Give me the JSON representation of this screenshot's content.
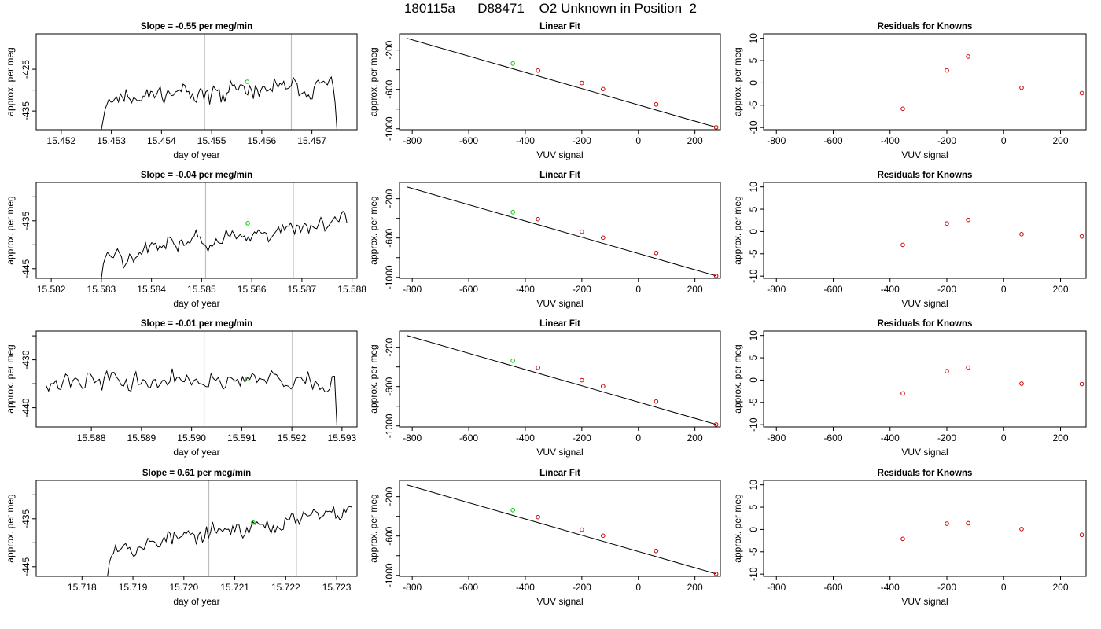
{
  "page": {
    "title": "180115a      D88471    O2 Unknown in Position  2"
  },
  "chart_data": [
    {
      "type": "line",
      "row": 1,
      "col": 1,
      "title": "Slope =  -0.55  per meg/min",
      "xlabel": "day of year",
      "ylabel": "approx. per meg",
      "xlim": [
        15.4515,
        15.4579
      ],
      "ylim": [
        -439.5,
        -416.5
      ],
      "xticks": [
        15.452,
        15.453,
        15.454,
        15.455,
        15.456,
        15.457
      ],
      "xtick_labels": [
        "15.452",
        "15.453",
        "15.454",
        "15.455",
        "15.456",
        "15.457"
      ],
      "yticks": [
        -435,
        -430,
        -425
      ],
      "ytick_labels": [
        "-435",
        "",
        "-425"
      ],
      "vlines": [
        15.45486,
        15.45659
      ],
      "marker": {
        "x": 15.45571,
        "y": -428.0
      },
      "trace": {
        "x_start": 15.4528,
        "x_end": 15.4575,
        "seed": 11,
        "base_start": -432.0,
        "base_end": -429.0,
        "noise": 2.6,
        "lead": [
          -439.5,
          -437.0,
          -434.5
        ],
        "tail": [
          -433.0,
          -439.5
        ]
      }
    },
    {
      "type": "line",
      "row": 1,
      "col": 2,
      "title": "Linear Fit",
      "xlabel": "VUV signal",
      "ylabel": "approx. per meg",
      "xlim": [
        -845,
        290
      ],
      "ylim": [
        -1010,
        -35
      ],
      "xticks": [
        -800,
        -600,
        -400,
        -200,
        0,
        200
      ],
      "xtick_labels": [
        "-800",
        "-600",
        "-400",
        "-200",
        "0",
        "200"
      ],
      "yticks": [
        -1000,
        -800,
        -600,
        -400,
        -200
      ],
      "ytick_labels": [
        "-1000",
        "",
        "-600",
        "",
        "-200"
      ],
      "fit_line": {
        "x": [
          -820,
          275
        ],
        "y": [
          -80,
          -985
        ]
      },
      "knowns": {
        "x": [
          -355,
          -200,
          -125,
          63,
          275
        ],
        "y": [
          -408,
          -535,
          -597,
          -752,
          -985
        ]
      },
      "unknown": {
        "x": [
          -444
        ],
        "y": [
          -337
        ]
      }
    },
    {
      "type": "scatter",
      "row": 1,
      "col": 3,
      "title": "Residuals for Knowns",
      "xlabel": "VUV signal",
      "ylabel": "approx. per meg",
      "xlim": [
        -845,
        290
      ],
      "ylim": [
        -10.5,
        11
      ],
      "xticks": [
        -800,
        -600,
        -400,
        -200,
        0,
        200
      ],
      "xtick_labels": [
        "-800",
        "-600",
        "-400",
        "-200",
        "0",
        "200"
      ],
      "yticks": [
        -10,
        -5,
        0,
        5,
        10
      ],
      "ytick_labels": [
        "-10",
        "-5",
        "0",
        "5",
        "10"
      ],
      "points": {
        "x": [
          -355,
          -200,
          -125,
          63,
          275
        ],
        "y": [
          -5.8,
          2.8,
          5.9,
          -1.1,
          -2.3
        ]
      }
    },
    {
      "type": "line",
      "row": 2,
      "col": 1,
      "title": "Slope =  -0.04  per meg/min",
      "xlabel": "day of year",
      "ylabel": "approx. per meg",
      "xlim": [
        15.5817,
        15.5881
      ],
      "ylim": [
        -447,
        -427
      ],
      "xticks": [
        15.582,
        15.583,
        15.584,
        15.585,
        15.586,
        15.587,
        15.588
      ],
      "xtick_labels": [
        "15.582",
        "15.583",
        "15.584",
        "15.585",
        "15.586",
        "15.587",
        "15.588"
      ],
      "yticks": [
        -445,
        -440,
        -435,
        -430
      ],
      "ytick_labels": [
        "-445",
        "",
        "-435",
        ""
      ],
      "vlines": [
        15.58508,
        15.58683
      ],
      "marker": {
        "x": 15.58592,
        "y": -435.5
      },
      "trace": {
        "x_start": 15.583,
        "x_end": 15.5879,
        "seed": 23,
        "base_start": -442.0,
        "base_end": -435.0,
        "noise": 2.2,
        "lead": [
          -447.0,
          -444.0
        ],
        "tail": [
          -435.5
        ]
      }
    },
    {
      "type": "line",
      "row": 2,
      "col": 2,
      "title": "Linear Fit",
      "xlabel": "VUV signal",
      "ylabel": "approx. per meg",
      "xlim": [
        -845,
        290
      ],
      "ylim": [
        -1010,
        -35
      ],
      "xticks": [
        -800,
        -600,
        -400,
        -200,
        0,
        200
      ],
      "xtick_labels": [
        "-800",
        "-600",
        "-400",
        "-200",
        "0",
        "200"
      ],
      "yticks": [
        -1000,
        -800,
        -600,
        -400,
        -200
      ],
      "ytick_labels": [
        "-1000",
        "",
        "-600",
        "",
        "-200"
      ],
      "fit_line": {
        "x": [
          -820,
          275
        ],
        "y": [
          -80,
          -985
        ]
      },
      "knowns": {
        "x": [
          -355,
          -200,
          -125,
          63,
          275
        ],
        "y": [
          -408,
          -535,
          -597,
          -752,
          -985
        ]
      },
      "unknown": {
        "x": [
          -444
        ],
        "y": [
          -337
        ]
      }
    },
    {
      "type": "scatter",
      "row": 2,
      "col": 3,
      "title": "Residuals for Knowns",
      "xlabel": "VUV signal",
      "ylabel": "approx. per meg",
      "xlim": [
        -845,
        290
      ],
      "ylim": [
        -10.5,
        11
      ],
      "xticks": [
        -800,
        -600,
        -400,
        -200,
        0,
        200
      ],
      "xtick_labels": [
        "-800",
        "-600",
        "-400",
        "-200",
        "0",
        "200"
      ],
      "yticks": [
        -10,
        -5,
        0,
        5,
        10
      ],
      "ytick_labels": [
        "-10",
        "-5",
        "0",
        "5",
        "10"
      ],
      "points": {
        "x": [
          -355,
          -200,
          -125,
          63,
          275
        ],
        "y": [
          -3.0,
          1.8,
          2.6,
          -0.6,
          -1.1
        ]
      }
    },
    {
      "type": "line",
      "row": 3,
      "col": 1,
      "title": "Slope =  -0.01  per meg/min",
      "xlabel": "day of year",
      "ylabel": "approx. per meg",
      "xlim": [
        15.5869,
        15.5933
      ],
      "ylim": [
        -444,
        -424
      ],
      "xticks": [
        15.588,
        15.589,
        15.59,
        15.591,
        15.592,
        15.593
      ],
      "xtick_labels": [
        "15.588",
        "15.589",
        "15.590",
        "15.591",
        "15.592",
        "15.593"
      ],
      "yticks": [
        -440,
        -435,
        -430,
        -425
      ],
      "ytick_labels": [
        "-440",
        "",
        "-430",
        ""
      ],
      "vlines": [
        15.59025,
        15.59201
      ],
      "marker": {
        "x": 15.59111,
        "y": -434.0
      },
      "trace": {
        "x_start": 15.5871,
        "x_end": 15.5929,
        "seed": 37,
        "base_start": -434.5,
        "base_end": -434.5,
        "noise": 2.3,
        "lead": [],
        "tail": [
          -444.0
        ]
      }
    },
    {
      "type": "line",
      "row": 3,
      "col": 2,
      "title": "Linear Fit",
      "xlabel": "VUV signal",
      "ylabel": "approx. per meg",
      "xlim": [
        -845,
        290
      ],
      "ylim": [
        -1010,
        -35
      ],
      "xticks": [
        -800,
        -600,
        -400,
        -200,
        0,
        200
      ],
      "xtick_labels": [
        "-800",
        "-600",
        "-400",
        "-200",
        "0",
        "200"
      ],
      "yticks": [
        -1000,
        -800,
        -600,
        -400,
        -200
      ],
      "ytick_labels": [
        "-1000",
        "",
        "-600",
        "",
        "-200"
      ],
      "fit_line": {
        "x": [
          -820,
          275
        ],
        "y": [
          -80,
          -985
        ]
      },
      "knowns": {
        "x": [
          -355,
          -200,
          -125,
          63,
          275
        ],
        "y": [
          -408,
          -535,
          -597,
          -752,
          -985
        ]
      },
      "unknown": {
        "x": [
          -444
        ],
        "y": [
          -337
        ]
      }
    },
    {
      "type": "scatter",
      "row": 3,
      "col": 3,
      "title": "Residuals for Knowns",
      "xlabel": "VUV signal",
      "ylabel": "approx. per meg",
      "xlim": [
        -845,
        290
      ],
      "ylim": [
        -10.5,
        11
      ],
      "xticks": [
        -800,
        -600,
        -400,
        -200,
        0,
        200
      ],
      "xtick_labels": [
        "-800",
        "-600",
        "-400",
        "-200",
        "0",
        "200"
      ],
      "yticks": [
        -10,
        -5,
        0,
        5,
        10
      ],
      "ytick_labels": [
        "-10",
        "-5",
        "0",
        "5",
        "10"
      ],
      "points": {
        "x": [
          -355,
          -200,
          -125,
          63,
          275
        ],
        "y": [
          -3.0,
          2.0,
          2.8,
          -0.8,
          -0.9
        ]
      }
    },
    {
      "type": "line",
      "row": 4,
      "col": 1,
      "title": "Slope =  0.61  per meg/min",
      "xlabel": "day of year",
      "ylabel": "approx. per meg",
      "xlim": [
        15.7171,
        15.7234
      ],
      "ylim": [
        -447,
        -427
      ],
      "xticks": [
        15.718,
        15.719,
        15.72,
        15.721,
        15.722,
        15.723
      ],
      "xtick_labels": [
        "15.718",
        "15.719",
        "15.720",
        "15.721",
        "15.722",
        "15.723"
      ],
      "yticks": [
        -445,
        -440,
        -435,
        -430
      ],
      "ytick_labels": [
        "-445",
        "",
        "-435",
        ""
      ],
      "vlines": [
        15.72049,
        15.72221
      ],
      "marker": {
        "x": 15.72136,
        "y": -435.8
      },
      "trace": {
        "x_start": 15.7185,
        "x_end": 15.7233,
        "seed": 53,
        "base_start": -441.0,
        "base_end": -433.5,
        "noise": 2.0,
        "lead": [
          -447.0,
          -444.0
        ],
        "tail": []
      }
    },
    {
      "type": "line",
      "row": 4,
      "col": 2,
      "title": "Linear Fit",
      "xlabel": "VUV signal",
      "ylabel": "approx. per meg",
      "xlim": [
        -845,
        290
      ],
      "ylim": [
        -1010,
        -35
      ],
      "xticks": [
        -800,
        -600,
        -400,
        -200,
        0,
        200
      ],
      "xtick_labels": [
        "-800",
        "-600",
        "-400",
        "-200",
        "0",
        "200"
      ],
      "yticks": [
        -1000,
        -800,
        -600,
        -400,
        -200
      ],
      "ytick_labels": [
        "-1000",
        "",
        "-600",
        "",
        "-200"
      ],
      "fit_line": {
        "x": [
          -820,
          275
        ],
        "y": [
          -80,
          -985
        ]
      },
      "knowns": {
        "x": [
          -355,
          -200,
          -125,
          63,
          275
        ],
        "y": [
          -408,
          -535,
          -597,
          -752,
          -985
        ]
      },
      "unknown": {
        "x": [
          -444
        ],
        "y": [
          -337
        ]
      }
    },
    {
      "type": "scatter",
      "row": 4,
      "col": 3,
      "title": "Residuals for Knowns",
      "xlabel": "VUV signal",
      "ylabel": "approx. per meg",
      "xlim": [
        -845,
        290
      ],
      "ylim": [
        -10.5,
        11
      ],
      "xticks": [
        -800,
        -600,
        -400,
        -200,
        0,
        200
      ],
      "xtick_labels": [
        "-800",
        "-600",
        "-400",
        "-200",
        "0",
        "200"
      ],
      "yticks": [
        -10,
        -5,
        0,
        5,
        10
      ],
      "ytick_labels": [
        "-10",
        "-5",
        "0",
        "5",
        "10"
      ],
      "points": {
        "x": [
          -355,
          -200,
          -125,
          63,
          275
        ],
        "y": [
          -2.1,
          1.3,
          1.4,
          0.1,
          -1.2
        ]
      }
    }
  ],
  "colors": {
    "axis": "#000000",
    "trace": "#000000",
    "vline": "#bebebe",
    "unknown_point": "#00cc00",
    "known_point": "#cc0000",
    "fit_line": "#000000"
  }
}
